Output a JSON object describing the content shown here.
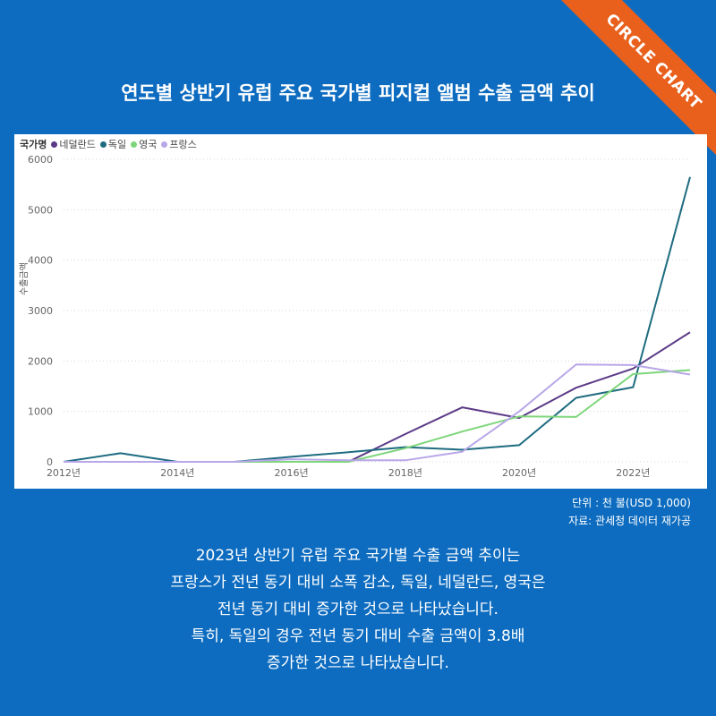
{
  "ribbon": {
    "label": "CIRCLE CHART",
    "color": "#e8601c"
  },
  "title": "연도별 상반기 유럽 주요 국가별 피지컬 앨범 수출 금액 추이",
  "source": {
    "unit": "단위 : 천 불(USD 1,000)",
    "origin": "자료: 관세청 데이터 재가공"
  },
  "body_lines": [
    "2023년 상반기 유럽 주요 국가별 수출 금액 추이는",
    "프랑스가 전년 동기 대비 소폭 감소, 독일, 네덜란드, 영국은",
    "전년 동기 대비 증가한 것으로 나타났습니다.",
    "특히, 독일의 경우 전년 동기 대비 수출 금액이 3.8배",
    "증가한 것으로 나타났습니다."
  ],
  "chart_data": {
    "type": "line",
    "legend_title": "국가명",
    "ylabel": "수출금액",
    "xlabel": "",
    "ylim": [
      0,
      6000
    ],
    "y_ticks": [
      0,
      1000,
      2000,
      3000,
      4000,
      5000,
      6000
    ],
    "x_ticks": [
      "2012년",
      "2014년",
      "2016년",
      "2018년",
      "2020년",
      "2022년"
    ],
    "x": [
      2012,
      2013,
      2014,
      2015,
      2016,
      2017,
      2018,
      2019,
      2020,
      2021,
      2022,
      2023
    ],
    "grid": true,
    "legend_position": "top-left",
    "series": [
      {
        "name": "네덜란드",
        "color": "#5b3a87",
        "values": [
          0,
          0,
          0,
          0,
          0,
          0,
          550,
          1080,
          870,
          1470,
          1850,
          2570
        ]
      },
      {
        "name": "독일",
        "color": "#1e6b80",
        "values": [
          0,
          170,
          0,
          0,
          100,
          190,
          290,
          240,
          330,
          1270,
          1480,
          5650
        ]
      },
      {
        "name": "영국",
        "color": "#7ed67a",
        "values": [
          0,
          0,
          0,
          0,
          0,
          0,
          270,
          600,
          900,
          890,
          1740,
          1820
        ]
      },
      {
        "name": "프랑스",
        "color": "#b8a7e8",
        "values": [
          0,
          0,
          0,
          0,
          50,
          30,
          30,
          200,
          1000,
          1930,
          1920,
          1730
        ]
      }
    ]
  }
}
